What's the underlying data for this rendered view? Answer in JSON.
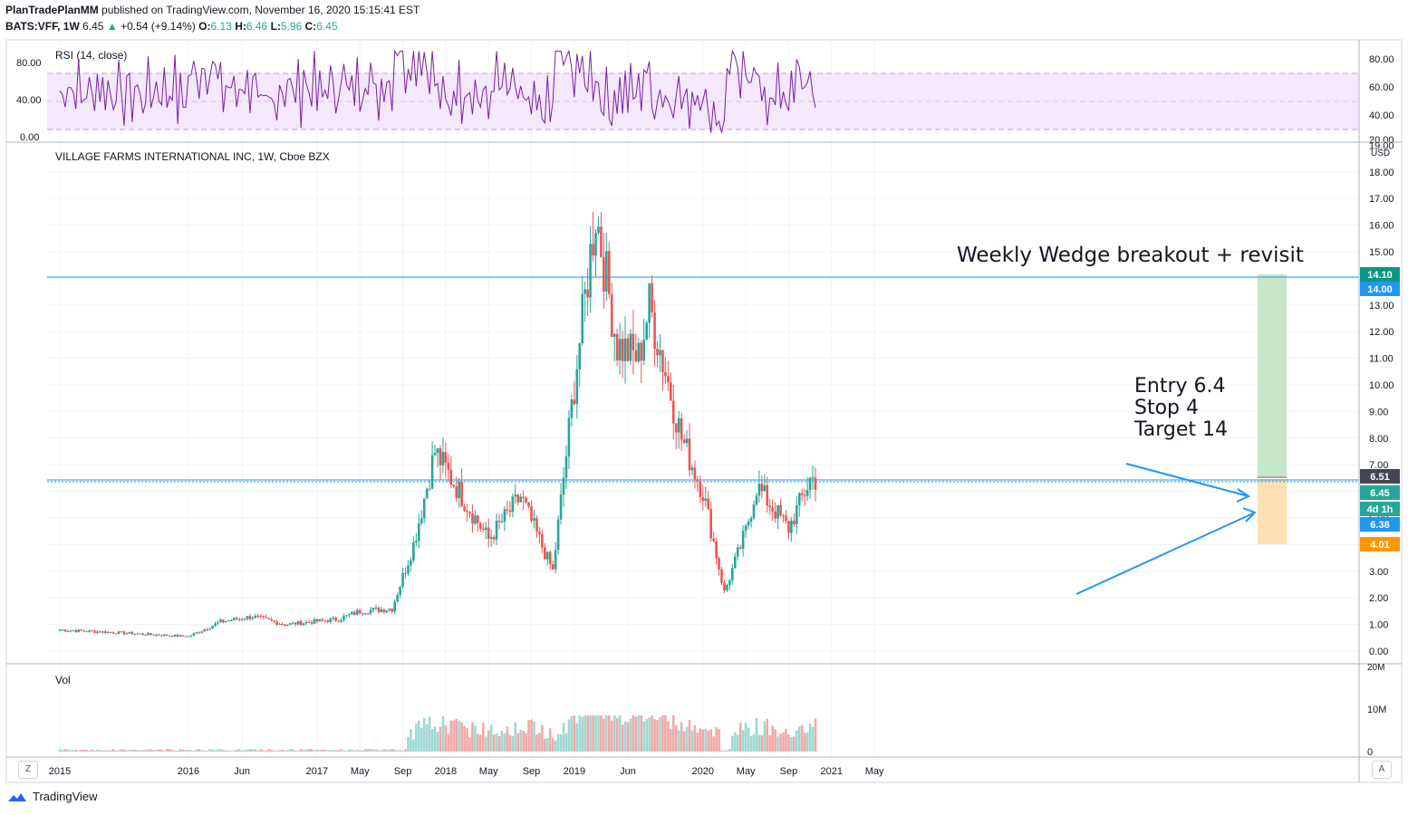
{
  "header": {
    "publisher": "PlanTradePlanMM",
    "published_text": "published on TradingView.com, November 16, 2020 15:15:41 EST",
    "symbol": "BATS:VFF, 1W",
    "last": "6.45",
    "change": "+0.54 (+9.14%)",
    "o_label": "O:",
    "o_val": "6.13",
    "h_label": "H:",
    "h_val": "6.46",
    "l_label": "L:",
    "l_val": "5.96",
    "c_label": "C:",
    "c_val": "6.45"
  },
  "rsi_panel": {
    "title": "RSI (14, close)",
    "left_ticks": [
      "80.00",
      "40.00",
      "0.00"
    ],
    "right_ticks": [
      "80.00",
      "60.00",
      "40.00",
      "20.00"
    ]
  },
  "price_panel": {
    "title": "VILLAGE FARMS INTERNATIONAL INC, 1W, Cboe BZX",
    "currency": "USD",
    "ticks": [
      "19.00",
      "18.00",
      "17.00",
      "16.00",
      "15.00",
      "14.00",
      "13.00",
      "12.00",
      "11.00",
      "10.00",
      "9.00",
      "8.00",
      "7.00",
      "6.00",
      "5.00",
      "4.00",
      "3.00",
      "2.00",
      "1.00",
      "0.00"
    ],
    "badges": [
      {
        "text": "14.10",
        "color": "#089981"
      },
      {
        "text": "14.00",
        "color": "#2196f3"
      },
      {
        "text": "6.51",
        "color": "#434651"
      },
      {
        "text": "6.45",
        "color": "#26a69a"
      },
      {
        "text": "4d 1h",
        "color": "#26a69a"
      },
      {
        "text": "6.38",
        "color": "#2196f3"
      },
      {
        "text": "4.01",
        "color": "#ff9800"
      }
    ],
    "annotation_title": "Weekly Wedge breakout + revisit",
    "annotation_lines": [
      "Entry 6.4",
      "Stop 4",
      "Target 14"
    ]
  },
  "volume_panel": {
    "title": "Vol",
    "ticks": [
      "20M",
      "10M",
      "0"
    ]
  },
  "time_axis": [
    "2015",
    "2016",
    "Jun",
    "2017",
    "May",
    "Sep",
    "2018",
    "May",
    "Sep",
    "2019",
    "Jun",
    "2020",
    "May",
    "Sep",
    "2021",
    "May"
  ],
  "footer": {
    "brand": "TradingView",
    "z_button": "Z",
    "a_button": "A"
  },
  "chart_data": {
    "type": "candlestick",
    "symbol": "BATS:VFF",
    "interval": "1W",
    "price_range": [
      0,
      19
    ],
    "anchors_price": [
      {
        "date": "2015-01",
        "close": 0.8
      },
      {
        "date": "2015-06",
        "close": 0.7
      },
      {
        "date": "2016-01",
        "close": 0.55
      },
      {
        "date": "2016-04",
        "close": 1.1
      },
      {
        "date": "2016-07",
        "close": 1.3
      },
      {
        "date": "2016-10",
        "close": 1.0
      },
      {
        "date": "2017-03",
        "close": 1.2
      },
      {
        "date": "2017-05",
        "close": 1.5
      },
      {
        "date": "2017-08",
        "close": 1.6
      },
      {
        "date": "2017-10",
        "close": 4.0
      },
      {
        "date": "2017-12",
        "close": 7.5
      },
      {
        "date": "2018-03",
        "close": 5.5
      },
      {
        "date": "2018-05",
        "close": 4.2
      },
      {
        "date": "2018-08",
        "close": 5.8
      },
      {
        "date": "2018-11",
        "close": 3.0
      },
      {
        "date": "2019-01",
        "close": 10.0
      },
      {
        "date": "2019-03",
        "close": 16.5
      },
      {
        "date": "2019-05",
        "close": 11.5
      },
      {
        "date": "2019-07",
        "close": 11.0
      },
      {
        "date": "2019-08",
        "close": 13.0
      },
      {
        "date": "2019-11",
        "close": 8.0
      },
      {
        "date": "2020-01",
        "close": 6.0
      },
      {
        "date": "2020-03",
        "close": 2.2
      },
      {
        "date": "2020-05",
        "close": 4.5
      },
      {
        "date": "2020-06",
        "close": 6.2
      },
      {
        "date": "2020-09",
        "close": 4.6
      },
      {
        "date": "2020-11",
        "close": 6.45
      }
    ],
    "lines": [
      {
        "name": "resistance",
        "value": 14.0
      },
      {
        "name": "current",
        "value": 6.45
      }
    ],
    "position": {
      "entry": 6.4,
      "stop": 4.01,
      "target": 14.1
    },
    "rsi_range": [
      0,
      100
    ],
    "rsi_levels": [
      70,
      30
    ],
    "volume_unit": "M"
  }
}
